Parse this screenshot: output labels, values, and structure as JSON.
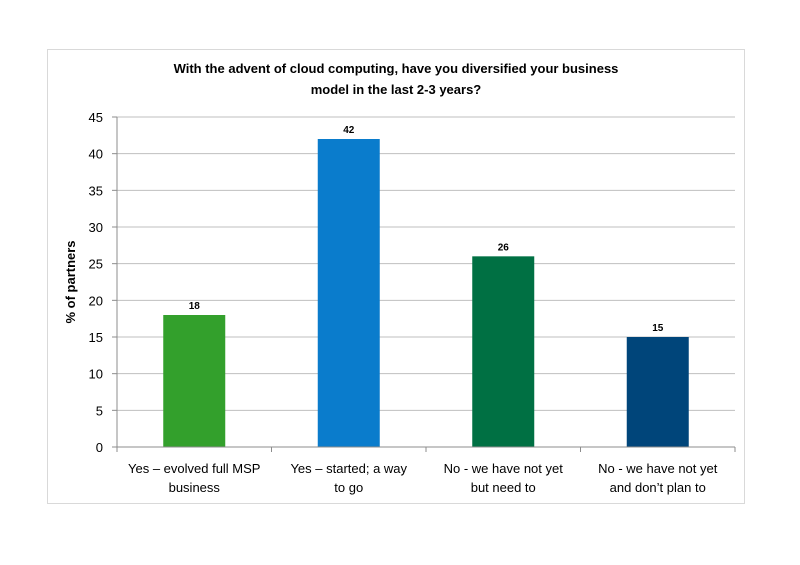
{
  "chart_data": {
    "type": "bar",
    "title_lines": [
      "With the advent of cloud computing, have you diversified your business",
      "model in the last 2-3 years?"
    ],
    "xlabel": "",
    "ylabel": "% of partners",
    "ylim": [
      0,
      45
    ],
    "yticks": [
      0,
      5,
      10,
      15,
      20,
      25,
      30,
      35,
      40,
      45
    ],
    "grid": true,
    "legend": "none",
    "categories": [
      [
        "Yes – evolved full MSP",
        "business"
      ],
      [
        "Yes – started; a way",
        "to go"
      ],
      [
        "No - we have not yet",
        "but need to"
      ],
      [
        "No - we have not yet",
        "and don’t plan to"
      ]
    ],
    "values": [
      18,
      42,
      26,
      15
    ],
    "data_labels": [
      "18",
      "42",
      "26",
      "15"
    ],
    "colors": [
      "#33a02c",
      "#0a7ccc",
      "#007043",
      "#00457a"
    ]
  }
}
